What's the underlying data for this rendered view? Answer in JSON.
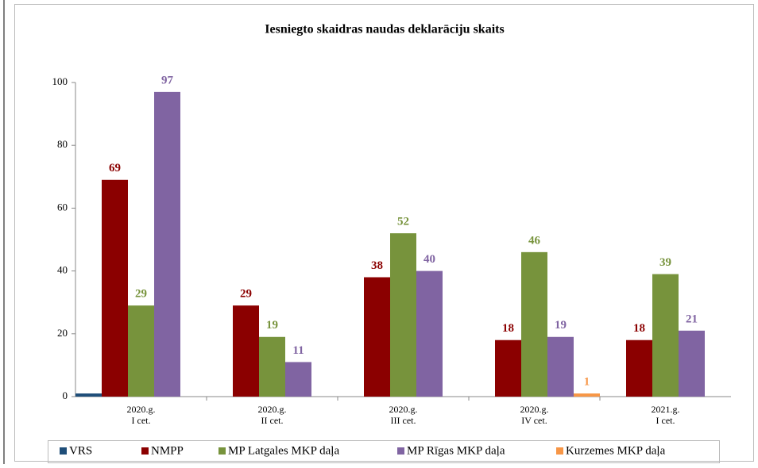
{
  "chart_data": {
    "type": "bar",
    "title": "Iesniegto skaidras naudas deklarāciju skaits",
    "categories": [
      [
        "2020.g.",
        "I cet."
      ],
      [
        "2020.g.",
        "II cet."
      ],
      [
        "2020.g.",
        "III cet."
      ],
      [
        "2020.g.",
        "IV cet."
      ],
      [
        "2021.g.",
        "I cet."
      ]
    ],
    "series": [
      {
        "name": "VRS",
        "color": "#1f4e79",
        "values": [
          1,
          null,
          null,
          null,
          null
        ],
        "data_labels": false
      },
      {
        "name": "NMPP",
        "color": "#8b0000",
        "values": [
          69,
          29,
          38,
          18,
          18
        ],
        "data_labels": true
      },
      {
        "name": "MP Latgales MKP daļa",
        "color": "#77933c",
        "values": [
          29,
          19,
          52,
          46,
          39
        ],
        "data_labels": true
      },
      {
        "name": "MP Rīgas MKP daļa",
        "color": "#8064a2",
        "values": [
          97,
          11,
          40,
          19,
          21
        ],
        "data_labels": true
      },
      {
        "name": "Kurzemes MKP daļa",
        "color": "#f79646",
        "values": [
          null,
          null,
          null,
          1,
          null
        ],
        "data_labels": true
      }
    ],
    "ylim": [
      0,
      100
    ],
    "yticks": [
      0,
      20,
      40,
      60,
      80,
      100
    ],
    "grid": false,
    "legend": "bottom"
  }
}
